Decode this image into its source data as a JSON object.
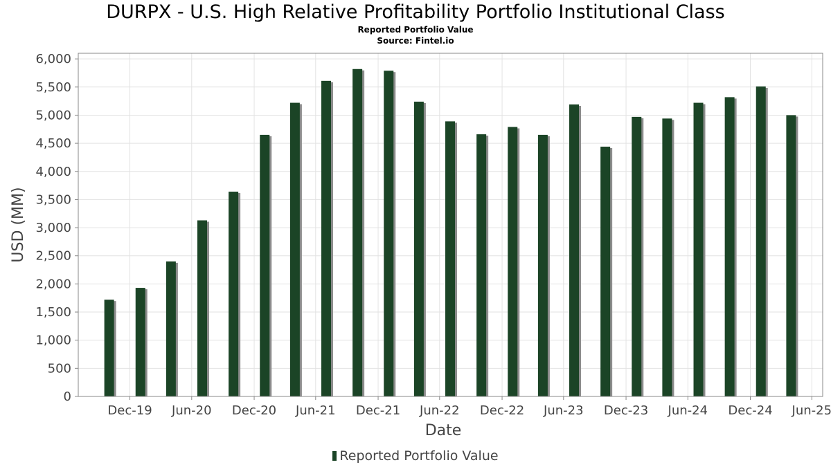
{
  "header": {
    "title": "DURPX - U.S. High Relative Profitability Portfolio Institutional Class",
    "subtitle": "Reported Portfolio Value",
    "source": "Source: Fintel.io"
  },
  "colors": {
    "bar": "#1b4426",
    "bar_shadow": "#8c8c8c",
    "grid": "#e2e2e2",
    "axis": "#888888"
  },
  "chart_data": {
    "type": "bar",
    "title": "DURPX - U.S. High Relative Profitability Portfolio Institutional Class",
    "subtitle": "Reported Portfolio Value",
    "xlabel": "Date",
    "ylabel": "USD (MM)",
    "ylim": [
      0,
      6100
    ],
    "yticks": [
      0,
      500,
      1000,
      1500,
      2000,
      2500,
      3000,
      3500,
      4000,
      4500,
      5000,
      5500,
      6000
    ],
    "ytick_labels": [
      "0",
      "500",
      "1,000",
      "1,500",
      "2,000",
      "2,500",
      "3,000",
      "3,500",
      "4,000",
      "4,500",
      "5,000",
      "5,500",
      "6,000"
    ],
    "xlim": [
      "2019-08-01",
      "2025-08-01"
    ],
    "xticks": [
      "2019-12-31",
      "2020-06-30",
      "2020-12-31",
      "2021-06-30",
      "2021-12-31",
      "2022-06-30",
      "2022-12-31",
      "2023-06-30",
      "2023-12-31",
      "2024-06-30",
      "2024-12-31",
      "2025-06-30"
    ],
    "xtick_labels": [
      "Dec-19",
      "Jun-20",
      "Dec-20",
      "Jun-21",
      "Dec-21",
      "Jun-22",
      "Dec-22",
      "Jun-23",
      "Dec-23",
      "Jun-24",
      "Dec-24",
      "Jun-25"
    ],
    "grid": true,
    "legend_position": "bottom",
    "series": [
      {
        "name": "Reported Portfolio Value",
        "x": [
          "2019-10-31",
          "2020-01-31",
          "2020-04-30",
          "2020-07-31",
          "2020-10-31",
          "2021-01-31",
          "2021-04-30",
          "2021-07-31",
          "2021-10-31",
          "2022-01-31",
          "2022-04-30",
          "2022-07-31",
          "2022-10-31",
          "2023-01-31",
          "2023-04-30",
          "2023-07-31",
          "2023-10-31",
          "2024-01-31",
          "2024-04-30",
          "2024-07-31",
          "2024-10-31",
          "2025-01-31",
          "2025-04-30"
        ],
        "values": [
          1720,
          1930,
          2400,
          3130,
          3640,
          4650,
          5220,
          5610,
          5820,
          5790,
          5240,
          4890,
          4660,
          4790,
          4650,
          5190,
          4440,
          4970,
          4940,
          5220,
          5320,
          5510,
          5000
        ]
      }
    ]
  }
}
